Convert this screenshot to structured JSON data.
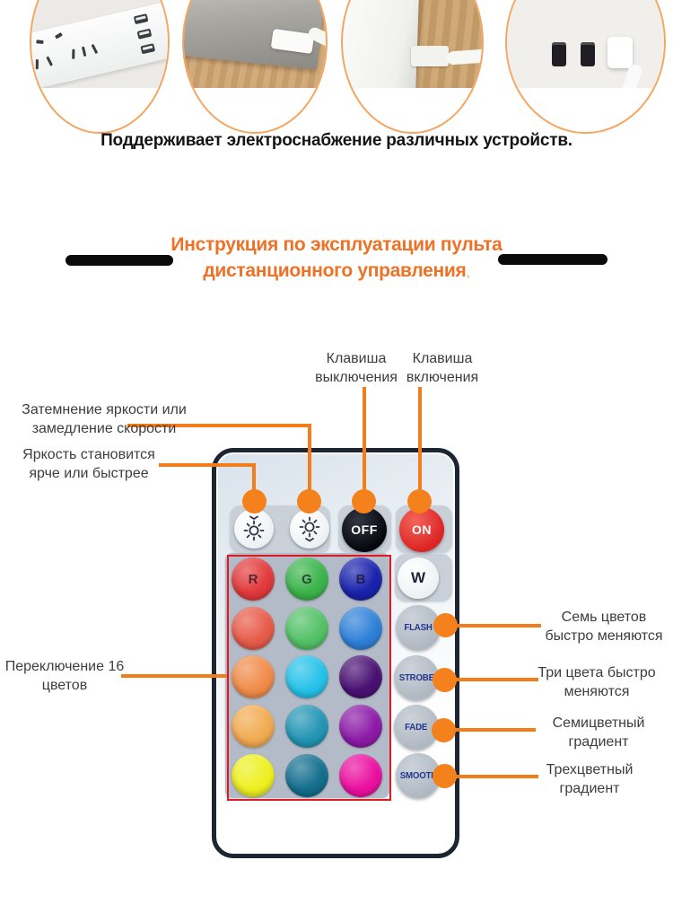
{
  "colors": {
    "accent_orange": "#f5811c",
    "title_orange": "#ee7125",
    "remote_border": "#1d2533",
    "frame_red": "#e0181f",
    "oval_ring": "#f3a661"
  },
  "hero": {
    "caption": "Поддерживает электроснабжение различных устройств.",
    "photos": [
      {
        "name": "power-strip-photo"
      },
      {
        "name": "laptop-usb-photo"
      },
      {
        "name": "wall-cable-photo"
      },
      {
        "name": "usb-charger-photo"
      }
    ]
  },
  "section_title": {
    "line1": "Инструкция по эксплуатации пульта",
    "line2": "дистанционного управления",
    "trailing_mark": ","
  },
  "callouts": {
    "dim": "Затемнение яркости или замедление скорости",
    "bright": "Яркость становится ярче или быстрее",
    "off": "Клавиша выключения",
    "on": "Клавиша включения",
    "colors16": "Переключение 16 цветов",
    "flash": "Семь цветов быстро меняются",
    "strobe": "Три цвета быстро меняются",
    "fade": "Семицветный градиент",
    "smooth": "Трехцветный градиент"
  },
  "remote": {
    "icons": {
      "brightness_up": "sun-chevron-above",
      "brightness_down": "sun-chevron-below"
    },
    "off_label": "OFF",
    "on_label": "ON",
    "white_label": "W",
    "mode_buttons": [
      "FLASH",
      "STROBE",
      "FADE",
      "SMOOTH"
    ],
    "color_buttons": [
      {
        "label": "R",
        "color": "#e23a3c"
      },
      {
        "label": "G",
        "color": "#3bb44c"
      },
      {
        "label": "B",
        "color": "#1a22ac"
      },
      {
        "label": "",
        "color": "#e75b49"
      },
      {
        "label": "",
        "color": "#53c166"
      },
      {
        "label": "",
        "color": "#2e81d8"
      },
      {
        "label": "",
        "color": "#f08c4a"
      },
      {
        "label": "",
        "color": "#26c2e9"
      },
      {
        "label": "",
        "color": "#4a1173"
      },
      {
        "label": "",
        "color": "#f2ab51"
      },
      {
        "label": "",
        "color": "#2395b5"
      },
      {
        "label": "",
        "color": "#8c1ba7"
      },
      {
        "label": "",
        "color": "#eef021"
      },
      {
        "label": "",
        "color": "#136f8e"
      },
      {
        "label": "",
        "color": "#ea10a0"
      }
    ]
  }
}
